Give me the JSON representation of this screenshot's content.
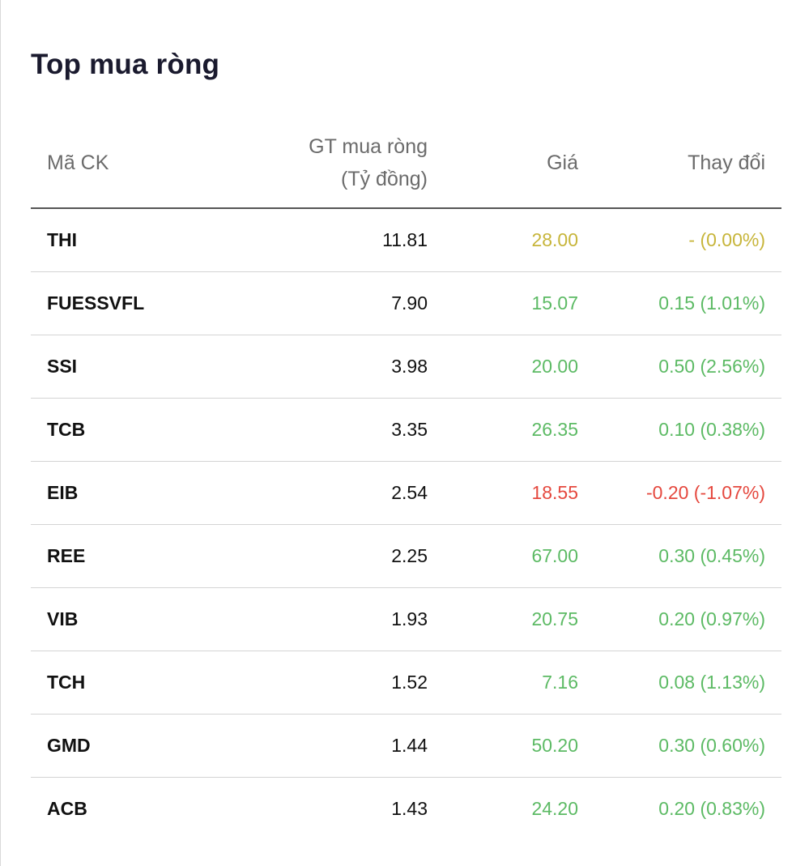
{
  "title": "Top mua ròng",
  "columns": {
    "symbol": "Mã CK",
    "net_value_line1": "GT mua ròng",
    "net_value_line2": "(Tỷ đồng)",
    "price": "Giá",
    "change": "Thay đổi"
  },
  "colors": {
    "up": "#5cba64",
    "down": "#e5483e",
    "flat": "#c7b53a"
  },
  "rows": [
    {
      "symbol": "THI",
      "net_value": "11.81",
      "price": "28.00",
      "change": "- (0.00%)",
      "trend": "flat"
    },
    {
      "symbol": "FUESSVFL",
      "net_value": "7.90",
      "price": "15.07",
      "change": "0.15 (1.01%)",
      "trend": "up"
    },
    {
      "symbol": "SSI",
      "net_value": "3.98",
      "price": "20.00",
      "change": "0.50 (2.56%)",
      "trend": "up"
    },
    {
      "symbol": "TCB",
      "net_value": "3.35",
      "price": "26.35",
      "change": "0.10 (0.38%)",
      "trend": "up"
    },
    {
      "symbol": "EIB",
      "net_value": "2.54",
      "price": "18.55",
      "change": "-0.20 (-1.07%)",
      "trend": "down"
    },
    {
      "symbol": "REE",
      "net_value": "2.25",
      "price": "67.00",
      "change": "0.30 (0.45%)",
      "trend": "up"
    },
    {
      "symbol": "VIB",
      "net_value": "1.93",
      "price": "20.75",
      "change": "0.20 (0.97%)",
      "trend": "up"
    },
    {
      "symbol": "TCH",
      "net_value": "1.52",
      "price": "7.16",
      "change": "0.08 (1.13%)",
      "trend": "up"
    },
    {
      "symbol": "GMD",
      "net_value": "1.44",
      "price": "50.20",
      "change": "0.30 (0.60%)",
      "trend": "up"
    },
    {
      "symbol": "ACB",
      "net_value": "1.43",
      "price": "24.20",
      "change": "0.20 (0.83%)",
      "trend": "up"
    }
  ]
}
